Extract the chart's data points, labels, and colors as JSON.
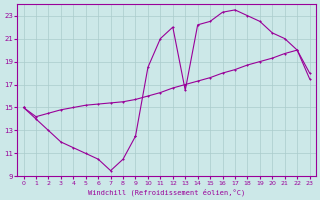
{
  "xlabel": "Windchill (Refroidissement éolien,°C)",
  "xlim": [
    -0.5,
    23.5
  ],
  "ylim": [
    9,
    24
  ],
  "xticks": [
    0,
    1,
    2,
    3,
    4,
    5,
    6,
    7,
    8,
    9,
    10,
    11,
    12,
    13,
    14,
    15,
    16,
    17,
    18,
    19,
    20,
    21,
    22,
    23
  ],
  "yticks": [
    9,
    11,
    13,
    15,
    17,
    19,
    21,
    23
  ],
  "background_color": "#cce8e8",
  "line_color": "#990099",
  "grid_color": "#aacccc",
  "line1_x": [
    0,
    1,
    2,
    3,
    4,
    5,
    6,
    7,
    8,
    9
  ],
  "line1_y": [
    15,
    14,
    13,
    12,
    11.5,
    11,
    10.5,
    9.5,
    10.5,
    12.5
  ],
  "line2_x": [
    0,
    1,
    2,
    3,
    4,
    5,
    6,
    7,
    8,
    9,
    10,
    11,
    12,
    13,
    14,
    15,
    16,
    17,
    18,
    19,
    20,
    21,
    22,
    23
  ],
  "line2_y": [
    15,
    14.2,
    14.5,
    14.8,
    15.0,
    15.2,
    15.3,
    15.4,
    15.5,
    15.7,
    16.0,
    16.3,
    16.7,
    17.0,
    17.3,
    17.6,
    18.0,
    18.3,
    18.7,
    19.0,
    19.3,
    19.7,
    20.0,
    17.5
  ],
  "line3_x": [
    9,
    10,
    11,
    12,
    13,
    14,
    15,
    16,
    17,
    18,
    19,
    20,
    21,
    22,
    23
  ],
  "line3_y": [
    12.5,
    18.5,
    21.0,
    22.0,
    16.5,
    22.2,
    22.5,
    23.3,
    23.5,
    23.0,
    22.5,
    21.5,
    21.0,
    20.0,
    18.0
  ]
}
